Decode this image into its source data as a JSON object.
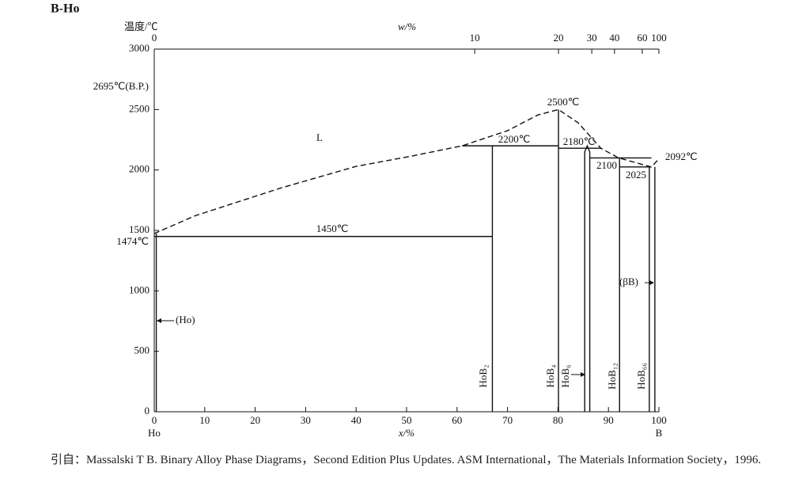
{
  "chart_data": {
    "type": "phase",
    "title": "B-Ho",
    "y_label": "温度/℃",
    "top_label": "w/%",
    "x_label": "x/%",
    "xlim": [
      0,
      100
    ],
    "ylim": [
      0,
      3000
    ],
    "xticks": [
      0,
      10,
      20,
      30,
      40,
      50,
      60,
      70,
      80,
      90,
      100
    ],
    "yticks": [
      0,
      500,
      1000,
      1500,
      2000,
      2500,
      3000
    ],
    "top_ticks": [
      {
        "value": 0,
        "label": "0"
      },
      {
        "value": 63.5,
        "label": "10"
      },
      {
        "value": 80.1,
        "label": "20"
      },
      {
        "value": 86.7,
        "label": "30"
      },
      {
        "value": 91.2,
        "label": "40"
      },
      {
        "value": 96.7,
        "label": "60"
      },
      {
        "value": 100,
        "label": "100"
      }
    ],
    "lines": [
      {
        "style": "dashed",
        "x": [
          0,
          8,
          16.5,
          25,
          40,
          51,
          61,
          70,
          76,
          80.1,
          84,
          88.5,
          92,
          98.5,
          100
        ],
        "y": [
          1474,
          1620,
          1735,
          1850,
          2030,
          2115,
          2200,
          2325,
          2455,
          2500,
          2390,
          2180,
          2100,
          2025,
          2092
        ]
      },
      {
        "style": "solid",
        "x": [
          0,
          67
        ],
        "y": [
          1450,
          1450
        ]
      },
      {
        "style": "solid",
        "x": [
          67,
          67
        ],
        "y": [
          0,
          2200
        ]
      },
      {
        "style": "solid",
        "x": [
          61,
          80.1
        ],
        "y": [
          2200,
          2200
        ]
      },
      {
        "style": "solid",
        "x": [
          80.1,
          80.1
        ],
        "y": [
          0,
          2500
        ]
      },
      {
        "style": "solid",
        "x": [
          80.1,
          88.5
        ],
        "y": [
          2180,
          2180
        ]
      },
      {
        "style": "solid",
        "x": [
          85.3,
          85.3,
          85.8,
          86.3,
          86.3
        ],
        "y": [
          0,
          2150,
          2200,
          2150,
          0
        ]
      },
      {
        "style": "solid",
        "x": [
          86.3,
          98.5
        ],
        "y": [
          2100,
          2100
        ]
      },
      {
        "style": "solid",
        "x": [
          92.2,
          92.2
        ],
        "y": [
          0,
          2100
        ]
      },
      {
        "style": "solid",
        "x": [
          92.2,
          98.5
        ],
        "y": [
          2025,
          2025
        ]
      },
      {
        "style": "solid",
        "x": [
          98.1,
          98.1
        ],
        "y": [
          0,
          2025
        ]
      },
      {
        "style": "solid",
        "x": [
          99.2,
          99.2
        ],
        "y": [
          0,
          2025
        ]
      },
      {
        "style": "solid",
        "x": [
          0.4,
          0.4
        ],
        "y": [
          0,
          1474
        ]
      }
    ],
    "annotations": [
      "Ho",
      "B",
      "2695℃(B.P.)",
      "1474℃",
      "L",
      "1450℃",
      "2200℃",
      "2500℃",
      "2180℃",
      "2100",
      "2025",
      "2092℃",
      "(Ho)",
      "(βB)"
    ],
    "phases": [
      "HoB₂",
      "HoB₄",
      "HoB₆",
      "HoB₁₂",
      "HoB₆₆"
    ]
  },
  "caption": "引自：Massalski T B. Binary Alloy Phase Diagrams，Second Edition Plus Updates. ASM International，The Materials Information Society，1996."
}
